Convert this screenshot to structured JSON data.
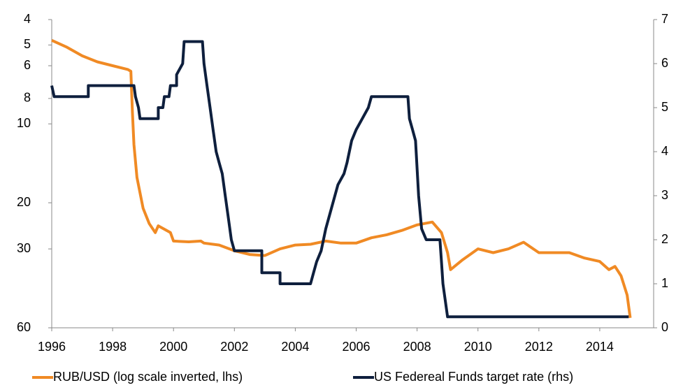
{
  "chart_data": {
    "type": "line",
    "xlim": [
      1996,
      2015.77
    ],
    "xticks": [
      1996,
      1998,
      2000,
      2002,
      2004,
      2006,
      2008,
      2010,
      2012,
      2014
    ],
    "ylim": [
      60,
      4
    ],
    "ylog": true,
    "yinverted": true,
    "yticks": [
      4,
      5,
      6,
      8,
      10,
      20,
      30,
      60
    ],
    "y2lim": [
      0,
      7
    ],
    "y2ticks": [
      0,
      1,
      2,
      3,
      4,
      5,
      6,
      7
    ],
    "legend": "bottom",
    "series": [
      {
        "name": "RUB/USD (log scale inverted, lhs)",
        "color": "#f08a24",
        "axis": "y",
        "x": [
          1996.0,
          1996.5,
          1997.0,
          1997.5,
          1998.0,
          1998.5,
          1998.6,
          1998.65,
          1998.7,
          1998.8,
          1999.0,
          1999.2,
          1999.4,
          1999.5,
          1999.9,
          2000.0,
          2000.5,
          2000.9,
          2001.0,
          2001.5,
          2002.0,
          2002.5,
          2003.0,
          2003.5,
          2004.0,
          2004.5,
          2005.0,
          2005.5,
          2006.0,
          2006.5,
          2007.0,
          2007.5,
          2008.0,
          2008.5,
          2008.8,
          2009.0,
          2009.1,
          2009.5,
          2010.0,
          2010.5,
          2011.0,
          2011.5,
          2012.0,
          2012.5,
          2013.0,
          2013.5,
          2014.0,
          2014.3,
          2014.5,
          2014.7,
          2014.9,
          2015.0
        ],
        "values": [
          4.8,
          5.1,
          5.5,
          5.8,
          6.0,
          6.2,
          6.3,
          9,
          12,
          16,
          21,
          24,
          26,
          24.5,
          26,
          28,
          28.2,
          28,
          28.5,
          29,
          30.5,
          31.5,
          31.8,
          30,
          29,
          28.8,
          28,
          28.5,
          28.5,
          27.2,
          26.5,
          25.5,
          24.3,
          23.7,
          26,
          31,
          36,
          33,
          30,
          31,
          30,
          28.3,
          31,
          31,
          31,
          32.5,
          33.5,
          36,
          35,
          38,
          45,
          55
        ]
      },
      {
        "name": "US Federeal Funds target rate (rhs)",
        "color": "#0e1f3d",
        "axis": "y2",
        "x": [
          1996.0,
          1996.08,
          1997.2,
          1997.2,
          1998.7,
          1998.75,
          1998.85,
          1998.9,
          1999.5,
          1999.5,
          1999.65,
          1999.7,
          1999.85,
          1999.9,
          2000.1,
          2000.1,
          2000.3,
          2000.35,
          2000.95,
          2001.0,
          2001.1,
          2001.2,
          2001.3,
          2001.4,
          2001.5,
          2001.6,
          2001.7,
          2001.8,
          2001.9,
          2002.0,
          2002.9,
          2002.9,
          2003.5,
          2003.5,
          2004.5,
          2004.6,
          2004.7,
          2004.85,
          2005.0,
          2005.2,
          2005.4,
          2005.6,
          2005.7,
          2005.85,
          2006.0,
          2006.2,
          2006.4,
          2006.5,
          2007.7,
          2007.75,
          2007.85,
          2007.95,
          2008.05,
          2008.15,
          2008.3,
          2008.75,
          2008.8,
          2008.85,
          2009.0,
          2014.95
        ],
        "values": [
          5.5,
          5.25,
          5.25,
          5.5,
          5.5,
          5.25,
          5.0,
          4.75,
          4.75,
          5.0,
          5.0,
          5.25,
          5.25,
          5.5,
          5.5,
          5.75,
          6.0,
          6.5,
          6.5,
          6.0,
          5.5,
          5.0,
          4.5,
          4.0,
          3.75,
          3.5,
          3.0,
          2.5,
          2.0,
          1.75,
          1.75,
          1.25,
          1.25,
          1.0,
          1.0,
          1.25,
          1.5,
          1.75,
          2.25,
          2.75,
          3.25,
          3.5,
          3.75,
          4.25,
          4.5,
          4.75,
          5.0,
          5.25,
          5.25,
          4.75,
          4.5,
          4.25,
          3.0,
          2.25,
          2.0,
          2.0,
          1.5,
          1.0,
          0.25,
          0.25
        ]
      }
    ]
  }
}
